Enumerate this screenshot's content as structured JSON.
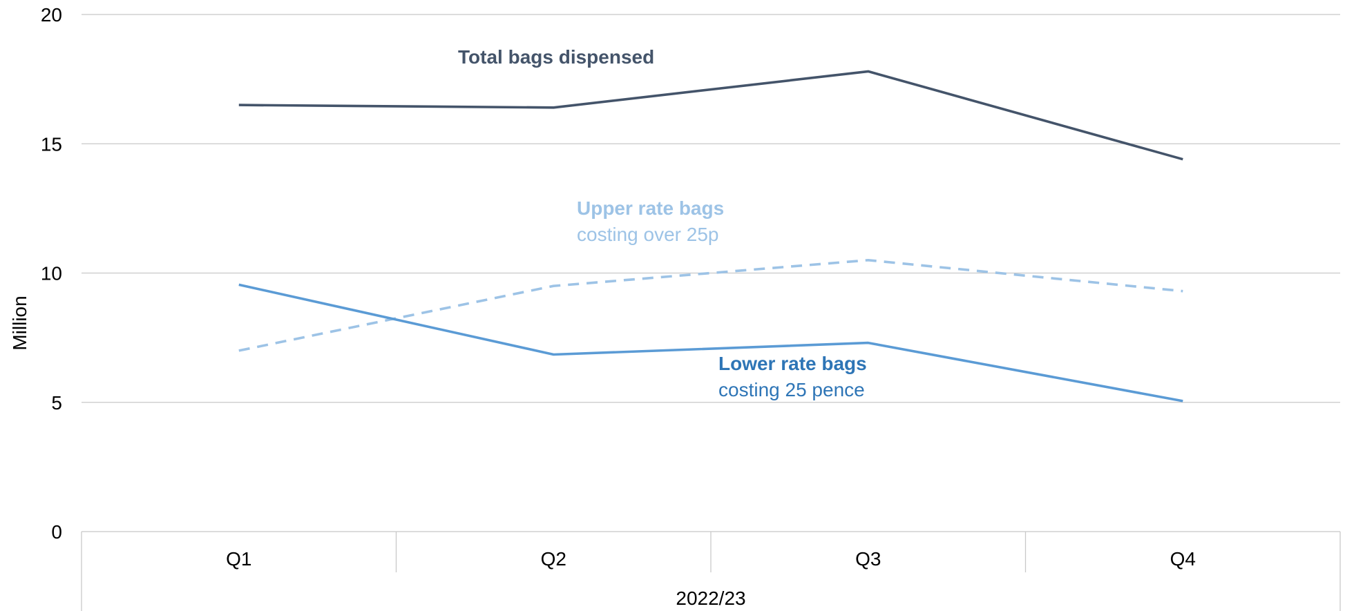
{
  "chart_data": {
    "type": "line",
    "categories": [
      "Q1",
      "Q2",
      "Q3",
      "Q4"
    ],
    "category_group": "2022/23",
    "ylabel": "Million",
    "ylim": [
      0,
      20
    ],
    "yticks": [
      0,
      5,
      10,
      15,
      20
    ],
    "grid": true,
    "series": [
      {
        "name": "Total bags dispensed",
        "values": [
          16.5,
          16.4,
          17.8,
          14.4
        ],
        "color": "#44546a",
        "style": "solid"
      },
      {
        "name": "Upper rate bags",
        "subtitle": "costing over 25p",
        "values": [
          7.0,
          9.5,
          10.5,
          9.3
        ],
        "color": "#9dc3e6",
        "style": "dashed"
      },
      {
        "name": "Lower rate bags",
        "subtitle": "costing 25 pence",
        "values": [
          9.55,
          6.85,
          7.3,
          5.05
        ],
        "color": "#5b9bd5",
        "style": "solid"
      }
    ],
    "annotations": [
      {
        "series": 0,
        "line1": "Total bags dispensed",
        "line2": ""
      },
      {
        "series": 1,
        "line1": "Upper rate bags",
        "line2": "costing over 25p"
      },
      {
        "series": 2,
        "line1": "Lower rate bags",
        "line2": "costing 25 pence"
      }
    ],
    "annotation_colors": [
      "#44546a",
      "#9dc3e6",
      "#2e75b6"
    ]
  }
}
